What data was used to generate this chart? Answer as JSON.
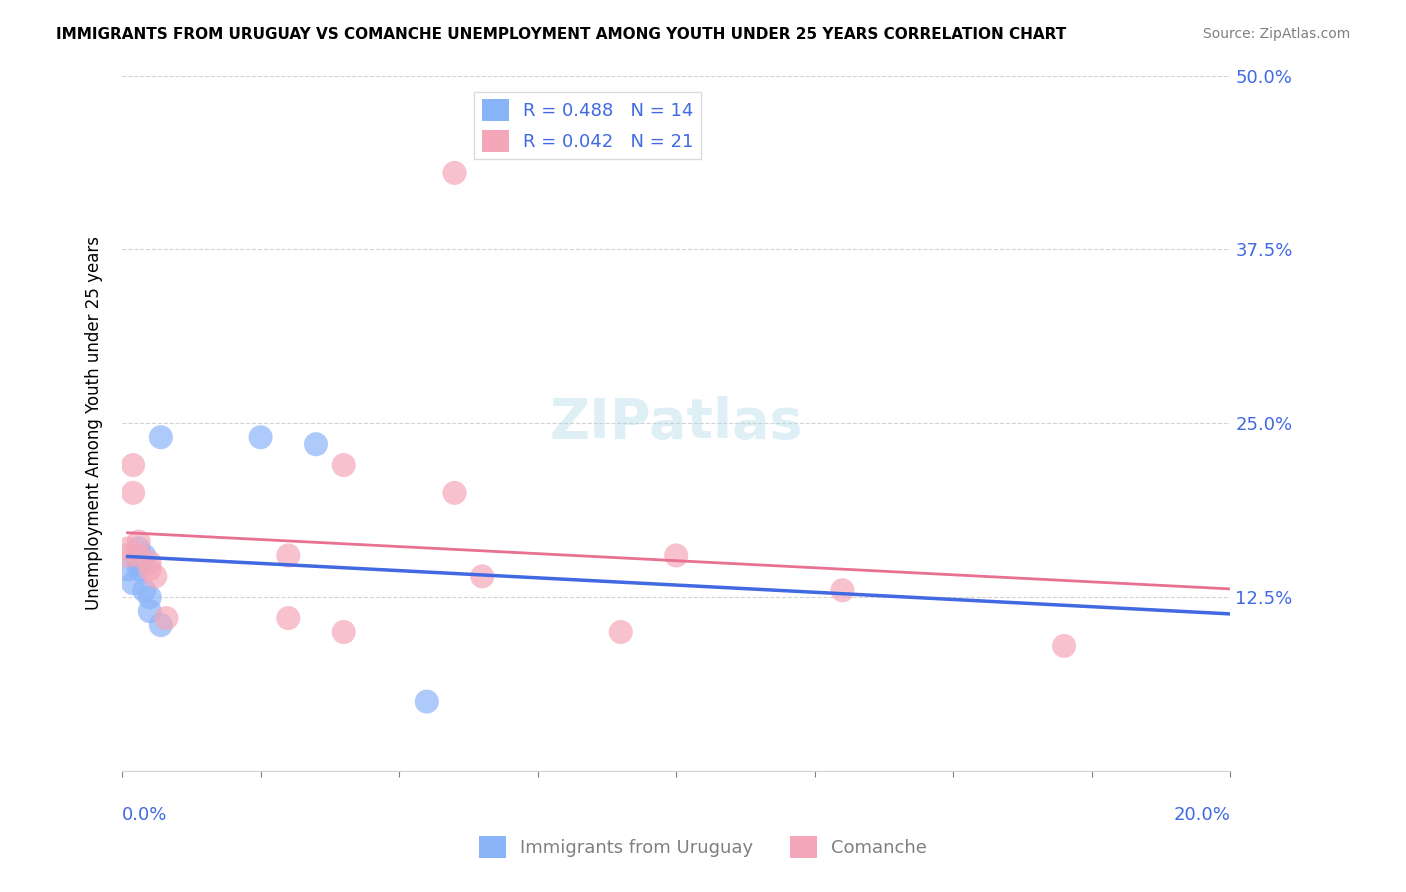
{
  "title": "IMMIGRANTS FROM URUGUAY VS COMANCHE UNEMPLOYMENT AMONG YOUTH UNDER 25 YEARS CORRELATION CHART",
  "source": "Source: ZipAtlas.com",
  "ylabel": "Unemployment Among Youth under 25 years",
  "xlim": [
    0.0,
    0.2
  ],
  "ylim": [
    0.0,
    0.5
  ],
  "yticks": [
    0.0,
    0.125,
    0.25,
    0.375,
    0.5
  ],
  "ytick_labels": [
    "",
    "12.5%",
    "25.0%",
    "37.5%",
    "50.0%"
  ],
  "color_uruguay": "#8ab4f8",
  "color_comanche": "#f4a7b9",
  "color_line_uruguay": "#4169e1",
  "color_line_comanche": "#e87090",
  "uruguay_x": [
    0.001,
    0.003,
    0.002,
    0.003,
    0.003,
    0.004,
    0.004,
    0.005,
    0.005,
    0.007,
    0.007,
    0.025,
    0.055,
    0.035
  ],
  "uruguay_y": [
    0.145,
    0.15,
    0.135,
    0.145,
    0.16,
    0.155,
    0.13,
    0.125,
    0.115,
    0.105,
    0.24,
    0.24,
    0.05,
    0.235
  ],
  "comanche_x": [
    0.001,
    0.001,
    0.002,
    0.002,
    0.003,
    0.003,
    0.005,
    0.005,
    0.006,
    0.008,
    0.03,
    0.03,
    0.04,
    0.04,
    0.065,
    0.06,
    0.09,
    0.1,
    0.13,
    0.17,
    0.06
  ],
  "comanche_y": [
    0.155,
    0.16,
    0.2,
    0.22,
    0.155,
    0.165,
    0.145,
    0.15,
    0.14,
    0.11,
    0.155,
    0.11,
    0.22,
    0.1,
    0.14,
    0.2,
    0.1,
    0.155,
    0.13,
    0.09,
    0.43
  ]
}
